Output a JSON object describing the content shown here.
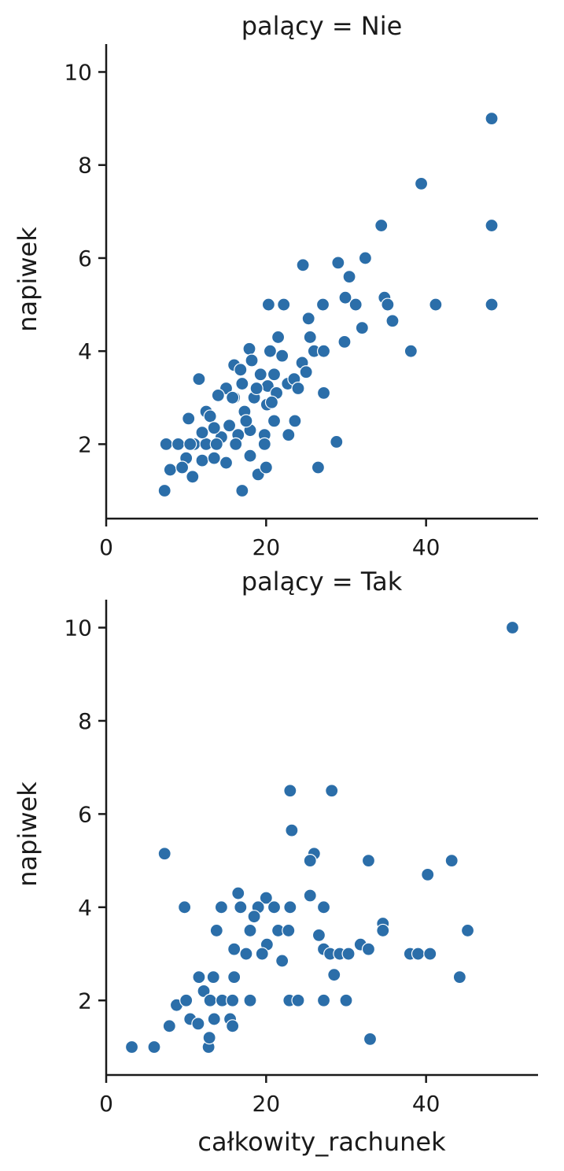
{
  "chart_data": [
    {
      "type": "scatter",
      "title": "palący = Nie",
      "xlabel": "",
      "ylabel": "napiwek",
      "xlim": [
        0,
        54
      ],
      "ylim": [
        0.4,
        10.6
      ],
      "xticks": [
        "0",
        "20",
        "40"
      ],
      "yticks": [
        "2",
        "4",
        "6",
        "8",
        "10"
      ],
      "color": "#2b6ea9",
      "grid": false,
      "points": [
        [
          48.2,
          9.0
        ],
        [
          39.4,
          7.6
        ],
        [
          48.2,
          6.7
        ],
        [
          34.4,
          6.7
        ],
        [
          32.4,
          6.0
        ],
        [
          29.0,
          5.9
        ],
        [
          24.6,
          5.85
        ],
        [
          30.4,
          5.6
        ],
        [
          20.3,
          5.0
        ],
        [
          22.2,
          5.0
        ],
        [
          27.1,
          5.0
        ],
        [
          29.9,
          5.15
        ],
        [
          31.2,
          5.0
        ],
        [
          34.8,
          5.15
        ],
        [
          35.2,
          5.0
        ],
        [
          41.2,
          5.0
        ],
        [
          48.2,
          5.0
        ],
        [
          25.3,
          4.7
        ],
        [
          35.8,
          4.65
        ],
        [
          32.0,
          4.5
        ],
        [
          25.5,
          4.3
        ],
        [
          21.5,
          4.3
        ],
        [
          17.9,
          4.05
        ],
        [
          20.5,
          4.0
        ],
        [
          26.0,
          4.0
        ],
        [
          27.2,
          4.0
        ],
        [
          38.1,
          4.0
        ],
        [
          29.8,
          4.2
        ],
        [
          22.0,
          3.9
        ],
        [
          16.0,
          3.7
        ],
        [
          18.2,
          3.8
        ],
        [
          24.5,
          3.75
        ],
        [
          11.6,
          3.4
        ],
        [
          19.3,
          3.5
        ],
        [
          21.0,
          3.5
        ],
        [
          25.0,
          3.55
        ],
        [
          17.0,
          3.3
        ],
        [
          15.0,
          3.2
        ],
        [
          20.2,
          3.25
        ],
        [
          22.7,
          3.3
        ],
        [
          14.0,
          3.05
        ],
        [
          16.0,
          3.0
        ],
        [
          18.5,
          3.0
        ],
        [
          20.1,
          2.85
        ],
        [
          12.5,
          2.7
        ],
        [
          17.3,
          2.7
        ],
        [
          27.2,
          3.1
        ],
        [
          21.0,
          2.5
        ],
        [
          23.6,
          2.5
        ],
        [
          10.3,
          2.55
        ],
        [
          13.0,
          2.6
        ],
        [
          15.4,
          2.4
        ],
        [
          18.0,
          2.3
        ],
        [
          19.8,
          2.2
        ],
        [
          14.4,
          2.15
        ],
        [
          16.5,
          2.2
        ],
        [
          11.0,
          2.0
        ],
        [
          7.5,
          2.0
        ],
        [
          9.0,
          2.0
        ],
        [
          10.5,
          2.0
        ],
        [
          12.5,
          2.0
        ],
        [
          13.8,
          2.0
        ],
        [
          16.2,
          2.0
        ],
        [
          19.8,
          2.0
        ],
        [
          22.8,
          2.2
        ],
        [
          28.8,
          2.05
        ],
        [
          15.0,
          1.6
        ],
        [
          10.0,
          1.7
        ],
        [
          12.0,
          1.65
        ],
        [
          13.5,
          1.7
        ],
        [
          18.0,
          1.75
        ],
        [
          8.0,
          1.45
        ],
        [
          9.5,
          1.5
        ],
        [
          10.8,
          1.3
        ],
        [
          19.0,
          1.35
        ],
        [
          20.0,
          1.5
        ],
        [
          26.5,
          1.5
        ],
        [
          7.3,
          1.0
        ],
        [
          17.0,
          1.0
        ],
        [
          17.5,
          2.5
        ],
        [
          18.8,
          3.2
        ],
        [
          21.3,
          3.1
        ],
        [
          23.5,
          3.4
        ],
        [
          16.8,
          3.6
        ],
        [
          20.7,
          2.9
        ],
        [
          12.0,
          2.25
        ],
        [
          13.5,
          2.35
        ],
        [
          15.8,
          3.0
        ],
        [
          24.0,
          3.2
        ]
      ]
    },
    {
      "type": "scatter",
      "title": "palący = Tak",
      "xlabel": "całkowity_rachunek",
      "ylabel": "napiwek",
      "xlim": [
        0,
        54
      ],
      "ylim": [
        0.4,
        10.6
      ],
      "xticks": [
        "0",
        "20",
        "40"
      ],
      "yticks": [
        "2",
        "4",
        "6",
        "8",
        "10"
      ],
      "color": "#2b6ea9",
      "grid": false,
      "points": [
        [
          50.8,
          10.0
        ],
        [
          23.0,
          6.5
        ],
        [
          28.2,
          6.5
        ],
        [
          23.2,
          5.65
        ],
        [
          7.3,
          5.15
        ],
        [
          26.0,
          5.15
        ],
        [
          25.5,
          5.0
        ],
        [
          32.8,
          5.0
        ],
        [
          43.2,
          5.0
        ],
        [
          40.2,
          4.7
        ],
        [
          16.5,
          4.3
        ],
        [
          20.0,
          4.2
        ],
        [
          25.5,
          4.25
        ],
        [
          9.8,
          4.0
        ],
        [
          14.4,
          4.0
        ],
        [
          16.8,
          4.0
        ],
        [
          19.0,
          4.0
        ],
        [
          21.0,
          4.0
        ],
        [
          23.0,
          4.0
        ],
        [
          27.2,
          4.0
        ],
        [
          18.5,
          3.8
        ],
        [
          34.6,
          3.65
        ],
        [
          34.6,
          3.5
        ],
        [
          45.2,
          3.5
        ],
        [
          13.8,
          3.5
        ],
        [
          18.0,
          3.5
        ],
        [
          21.5,
          3.5
        ],
        [
          22.8,
          3.5
        ],
        [
          26.6,
          3.4
        ],
        [
          20.1,
          3.2
        ],
        [
          31.8,
          3.2
        ],
        [
          16.0,
          3.1
        ],
        [
          27.2,
          3.1
        ],
        [
          32.8,
          3.1
        ],
        [
          38.0,
          3.0
        ],
        [
          39.0,
          3.0
        ],
        [
          40.5,
          3.0
        ],
        [
          17.5,
          3.0
        ],
        [
          19.5,
          3.0
        ],
        [
          28.0,
          3.0
        ],
        [
          29.2,
          3.0
        ],
        [
          30.3,
          3.0
        ],
        [
          22.0,
          2.85
        ],
        [
          44.2,
          2.5
        ],
        [
          11.6,
          2.5
        ],
        [
          13.4,
          2.5
        ],
        [
          16.0,
          2.5
        ],
        [
          28.5,
          2.55
        ],
        [
          12.2,
          2.2
        ],
        [
          8.8,
          1.9
        ],
        [
          10.0,
          2.0
        ],
        [
          13.0,
          2.0
        ],
        [
          14.5,
          2.0
        ],
        [
          15.8,
          2.0
        ],
        [
          18.0,
          2.0
        ],
        [
          22.9,
          2.0
        ],
        [
          24.0,
          2.0
        ],
        [
          27.2,
          2.0
        ],
        [
          30.0,
          2.0
        ],
        [
          10.5,
          1.6
        ],
        [
          11.5,
          1.5
        ],
        [
          13.5,
          1.6
        ],
        [
          15.5,
          1.6
        ],
        [
          15.8,
          1.45
        ],
        [
          7.9,
          1.45
        ],
        [
          3.2,
          1.0
        ],
        [
          6.0,
          1.0
        ],
        [
          12.8,
          1.0
        ],
        [
          12.9,
          1.2
        ],
        [
          33.0,
          1.17
        ]
      ]
    }
  ]
}
